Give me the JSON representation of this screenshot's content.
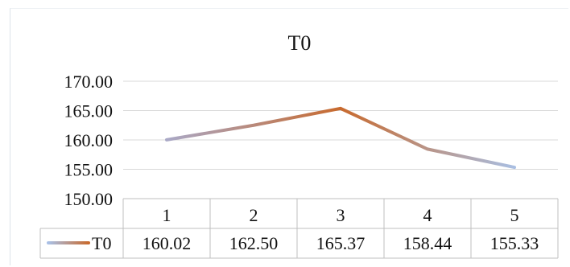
{
  "chart_data": {
    "type": "line",
    "title": "T0",
    "categories": [
      "1",
      "2",
      "3",
      "4",
      "5"
    ],
    "series": [
      {
        "name": "T0",
        "values": [
          160.02,
          162.5,
          165.37,
          158.44,
          155.33
        ]
      }
    ],
    "y_ticks": [
      "170.00",
      "165.00",
      "160.00",
      "155.00",
      "150.00"
    ],
    "ylim": [
      150,
      170
    ],
    "grid": true,
    "data_table": true,
    "table_values": [
      "160.02",
      "162.50",
      "165.37",
      "158.44",
      "155.33"
    ],
    "line_gradient": [
      "#9ab0d8",
      "#c86a2e",
      "#a9bfe3"
    ]
  }
}
